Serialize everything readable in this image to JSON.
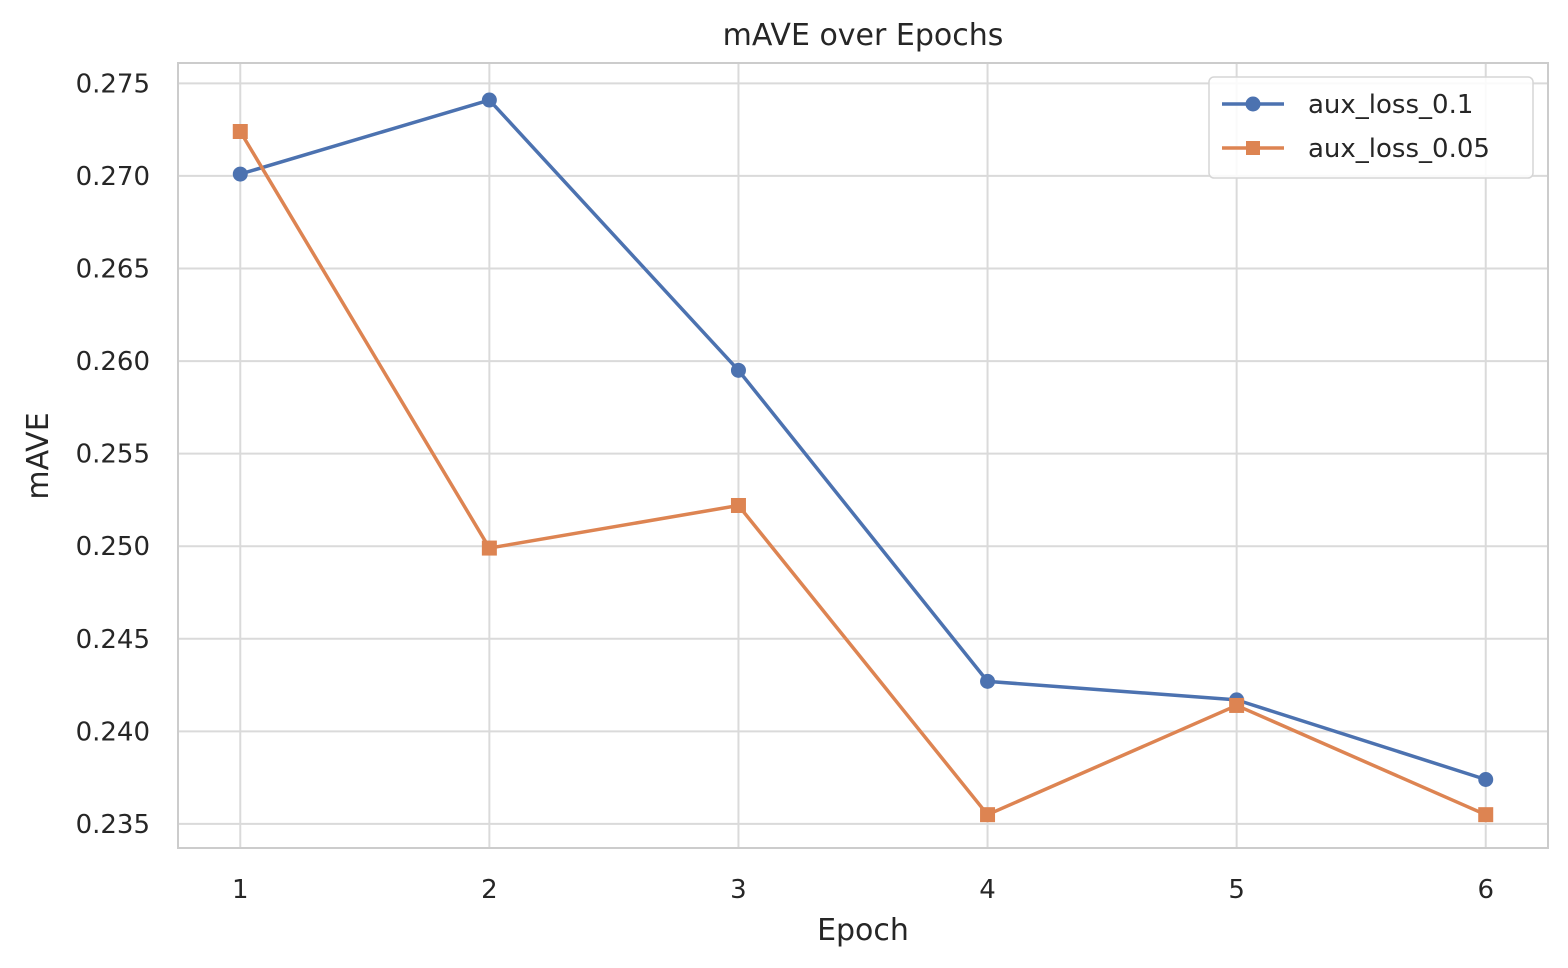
{
  "chart_data": {
    "type": "line",
    "title": "mAVE over Epochs",
    "xlabel": "Epoch",
    "ylabel": "mAVE",
    "x": [
      1,
      2,
      3,
      4,
      5,
      6
    ],
    "xticks": [
      "1",
      "2",
      "3",
      "4",
      "5",
      "6"
    ],
    "yticks": [
      "0.235",
      "0.240",
      "0.245",
      "0.250",
      "0.255",
      "0.260",
      "0.265",
      "0.270",
      "0.275"
    ],
    "xlim": [
      0.75,
      6.25
    ],
    "ylim": [
      0.2337,
      0.2761
    ],
    "grid": true,
    "legend_position": "top-right",
    "series": [
      {
        "name": "aux_loss_0.1",
        "marker": "circle",
        "color": "#4c72b0",
        "values": [
          0.2701,
          0.2741,
          0.2595,
          0.2427,
          0.2417,
          0.2374
        ]
      },
      {
        "name": "aux_loss_0.05",
        "marker": "square",
        "color": "#dd8452",
        "values": [
          0.2724,
          0.2499,
          0.2522,
          0.2355,
          0.2414,
          0.2355
        ]
      }
    ]
  }
}
